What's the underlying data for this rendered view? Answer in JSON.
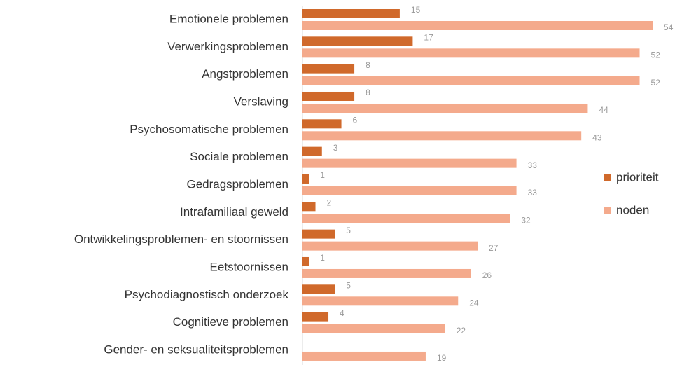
{
  "chart_data": {
    "type": "bar",
    "orientation": "horizontal",
    "categories": [
      "Emotionele problemen",
      "Verwerkingsproblemen",
      "Angstproblemen",
      "Verslaving",
      "Psychosomatische problemen",
      "Sociale problemen",
      "Gedragsproblemen",
      "Intrafamiliaal geweld",
      "Ontwikkelingsproblemen- en stoornissen",
      "Eetstoornissen",
      "Psychodiagnostisch onderzoek",
      "Cognitieve problemen",
      "Gender- en seksualiteitsproblemen"
    ],
    "series": [
      {
        "name": "prioriteit",
        "color": "#d0692b",
        "values": [
          15,
          17,
          8,
          8,
          6,
          3,
          1,
          2,
          5,
          1,
          5,
          4,
          null
        ]
      },
      {
        "name": "noden",
        "color": "#f4aa8c",
        "values": [
          54,
          52,
          52,
          44,
          43,
          33,
          33,
          32,
          27,
          26,
          24,
          22,
          19
        ]
      }
    ],
    "legend": "right"
  }
}
